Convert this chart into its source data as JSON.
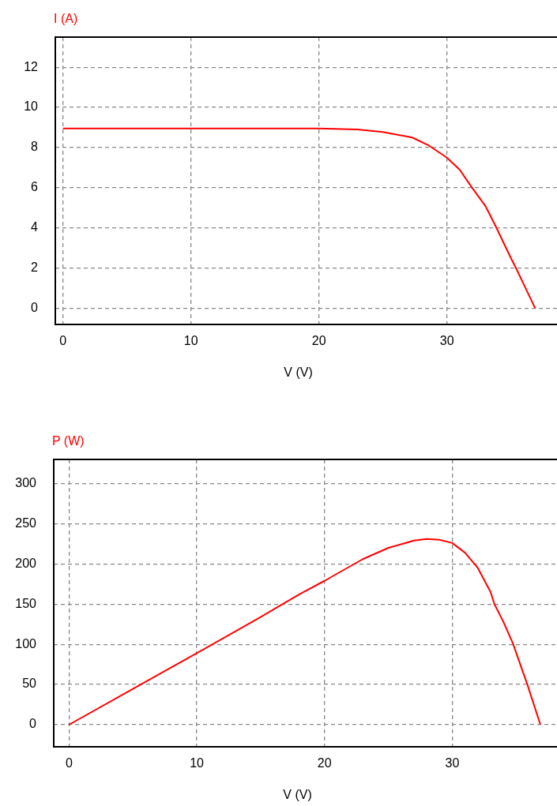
{
  "chart_data": [
    {
      "type": "line",
      "ylabel": "I (A)",
      "xlabel": "V (V)",
      "x": [
        0,
        5,
        10,
        15,
        20,
        23,
        25,
        27.3,
        28.6,
        30,
        31,
        31.9,
        33,
        33.8,
        35,
        35.4,
        36,
        36.9
      ],
      "series": [
        {
          "color": "#ff0000",
          "values": [
            8.95,
            8.95,
            8.95,
            8.95,
            8.95,
            8.9,
            8.78,
            8.5,
            8.1,
            7.5,
            6.9,
            6.06,
            5.1,
            4.1,
            2.5,
            2.0,
            1.2,
            0
          ]
        }
      ],
      "xlim": [
        -0.6,
        38.6
      ],
      "ylim": [
        -0.8,
        13.5
      ],
      "xticks": [
        0,
        10,
        20,
        30
      ],
      "yticks": [
        0,
        2,
        4,
        6,
        8,
        10,
        12
      ],
      "grid": true,
      "marker": "none",
      "line_style": "solid"
    },
    {
      "type": "line",
      "ylabel": "P (W)",
      "xlabel": "V (V)",
      "x": [
        0,
        5,
        10,
        15,
        18,
        20,
        23,
        25,
        27,
        28,
        29,
        30,
        31,
        32,
        33,
        33.3,
        34,
        34.75,
        35.9,
        36.9
      ],
      "series": [
        {
          "color": "#ff0000",
          "values": [
            0,
            44.5,
            89,
            134,
            162,
            179,
            206,
            220,
            229,
            231,
            230,
            226,
            214,
            195,
            165,
            150,
            128,
            101,
            49,
            0
          ]
        }
      ],
      "xlim": [
        -1.2,
        38.2
      ],
      "ylim": [
        -27.5,
        330
      ],
      "xticks": [
        0,
        10,
        20,
        30
      ],
      "yticks": [
        0,
        50,
        100,
        150,
        200,
        250,
        300
      ],
      "grid": true,
      "marker": "none",
      "line_style": "solid"
    }
  ]
}
